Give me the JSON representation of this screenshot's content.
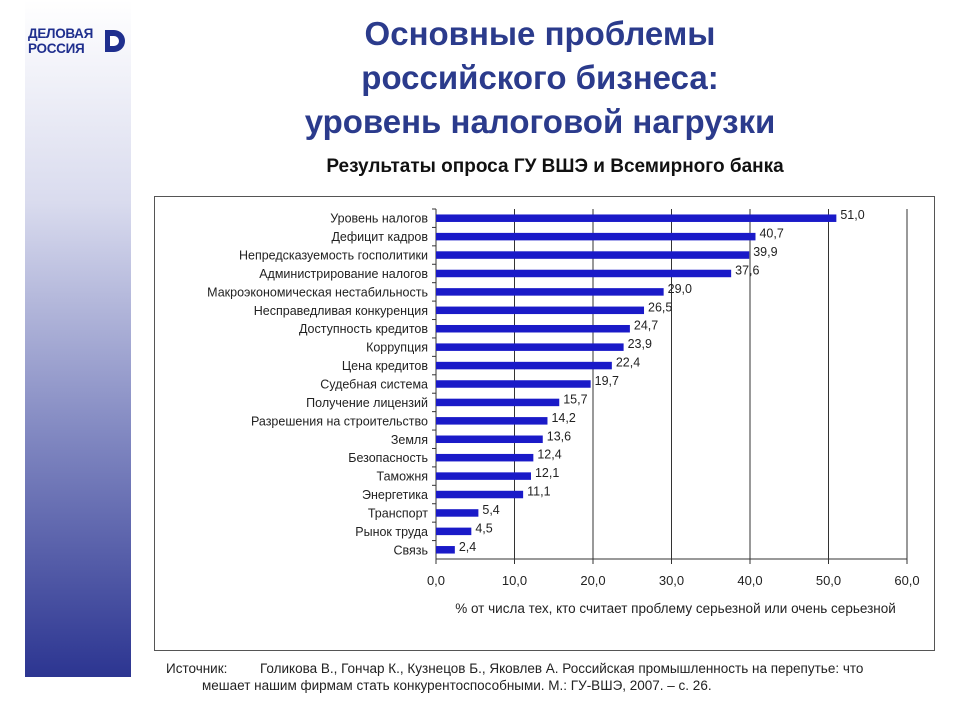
{
  "logo": {
    "line1": "ДЕЛОВАЯ",
    "line2": "РОССИЯ"
  },
  "title": {
    "line1": "Основные проблемы",
    "line2": "российского бизнеса:",
    "line3": "уровень налоговой нагрузки"
  },
  "subtitle": "Результаты опроса ГУ ВШЭ и Всемирного банка",
  "source": {
    "label": "Источник:",
    "line1": "Голикова В., Гончар К., Кузнецов Б., Яковлев А. Российская промышленность на перепутье: что",
    "line2": "мешает нашим фирмам стать конкурентоспособными. М.: ГУ-ВШЭ, 2007. – с. 26."
  },
  "colors": {
    "bar": "#1a1ac8",
    "title": "#2b3b8c"
  },
  "chart_data": {
    "type": "bar",
    "orientation": "horizontal",
    "categories": [
      "Уровень налогов",
      "Дефицит кадров",
      "Непредсказуемость госполитики",
      "Администрирование налогов",
      "Макроэкономическая нестабильность",
      "Несправедливая конкуренция",
      "Доступность кредитов",
      "Коррупция",
      "Цена кредитов",
      "Судебная система",
      "Получение лицензий",
      "Разрешения на строительство",
      "Земля",
      "Безопасность",
      "Таможня",
      "Энергетика",
      "Транспорт",
      "Рынок труда",
      "Связь"
    ],
    "values": [
      51.0,
      40.7,
      39.9,
      37.6,
      29.0,
      26.5,
      24.7,
      23.9,
      22.4,
      19.7,
      15.7,
      14.2,
      13.6,
      12.4,
      12.1,
      11.1,
      5.4,
      4.5,
      2.4
    ],
    "value_labels": [
      "51,0",
      "40,7",
      "39,9",
      "37,6",
      "29,0",
      "26,5",
      "24,7",
      "23,9",
      "22,4",
      "19,7",
      "15,7",
      "14,2",
      "13,6",
      "12,4",
      "12,1",
      "11,1",
      "5,4",
      "4,5",
      "2,4"
    ],
    "xlim": [
      0,
      60
    ],
    "xticks": [
      0,
      10,
      20,
      30,
      40,
      50,
      60
    ],
    "xtick_labels": [
      "0,0",
      "10,0",
      "20,0",
      "30,0",
      "40,0",
      "50,0",
      "60,0"
    ],
    "xlabel": "% от числа тех, кто считает проблему серьезной или очень серьезной",
    "ylabel": "",
    "grid": "vertical",
    "legend": "none"
  }
}
